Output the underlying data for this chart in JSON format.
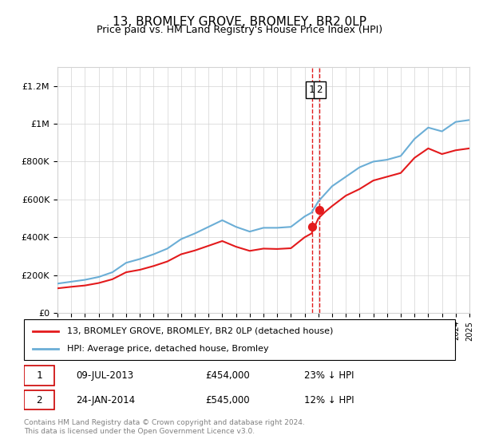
{
  "title": "13, BROMLEY GROVE, BROMLEY, BR2 0LP",
  "subtitle": "Price paid vs. HM Land Registry's House Price Index (HPI)",
  "legend_line1": "13, BROMLEY GROVE, BROMLEY, BR2 0LP (detached house)",
  "legend_line2": "HPI: Average price, detached house, Bromley",
  "transaction1_label": "1",
  "transaction1_date": "09-JUL-2013",
  "transaction1_price": "£454,000",
  "transaction1_hpi": "23% ↓ HPI",
  "transaction2_label": "2",
  "transaction2_date": "24-JAN-2014",
  "transaction2_price": "£545,000",
  "transaction2_hpi": "12% ↓ HPI",
  "footer": "Contains HM Land Registry data © Crown copyright and database right 2024.\nThis data is licensed under the Open Government Licence v3.0.",
  "hpi_color": "#6baed6",
  "property_color": "#e31a1c",
  "marker_color": "#e31a1c",
  "vline_color": "#e31a1c",
  "background_color": "#ffffff",
  "ylim": [
    0,
    1300000
  ],
  "yticks": [
    0,
    200000,
    400000,
    600000,
    800000,
    1000000,
    1200000
  ],
  "ytick_labels": [
    "£0",
    "£200K",
    "£400K",
    "£600K",
    "£800K",
    "£1M",
    "£1.2M"
  ],
  "hpi_years": [
    1995,
    1996,
    1997,
    1998,
    1999,
    2000,
    2001,
    2002,
    2003,
    2004,
    2005,
    2006,
    2007,
    2008,
    2009,
    2010,
    2011,
    2012,
    2013,
    2013.5,
    2014,
    2014.5,
    2015,
    2016,
    2017,
    2018,
    2019,
    2020,
    2021,
    2022,
    2023,
    2024,
    2025
  ],
  "hpi_values": [
    155000,
    165000,
    175000,
    190000,
    215000,
    265000,
    285000,
    310000,
    340000,
    390000,
    420000,
    455000,
    490000,
    455000,
    430000,
    450000,
    450000,
    455000,
    510000,
    530000,
    590000,
    630000,
    670000,
    720000,
    770000,
    800000,
    810000,
    830000,
    920000,
    980000,
    960000,
    1010000,
    1020000
  ],
  "prop_years": [
    1995,
    1996,
    1997,
    1998,
    1999,
    2000,
    2001,
    2002,
    2003,
    2004,
    2005,
    2006,
    2007,
    2008,
    2009,
    2010,
    2011,
    2012,
    2013,
    2013.5,
    2014,
    2014.5,
    2015,
    2016,
    2017,
    2018,
    2019,
    2020,
    2021,
    2022,
    2023,
    2024,
    2025
  ],
  "prop_values": [
    130000,
    138000,
    145000,
    158000,
    178000,
    215000,
    228000,
    248000,
    272000,
    310000,
    330000,
    355000,
    380000,
    350000,
    328000,
    340000,
    338000,
    342000,
    400000,
    420000,
    500000,
    535000,
    565000,
    620000,
    655000,
    700000,
    720000,
    740000,
    820000,
    870000,
    840000,
    860000,
    870000
  ],
  "sale1_year": 2013.52,
  "sale1_value": 454000,
  "sale2_year": 2014.07,
  "sale2_value": 545000,
  "xmin": 1995,
  "xmax": 2025
}
